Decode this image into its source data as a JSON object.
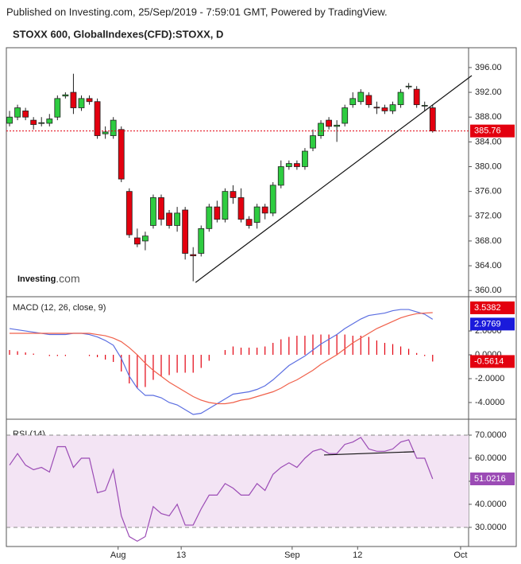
{
  "header": {
    "published": "Published on Investing.com, 25/Sep/2019 - 7:59:01 GMT, Powered by TradingView.",
    "logo": "Investing",
    "logo_suffix": ".com"
  },
  "chart_data": [
    {
      "type": "candlestick",
      "title": "STOXX 600, GlobalIndexes(CFD):STOXX, D",
      "up_color": "#2ecc40",
      "down_color": "#e3000f",
      "xlim": [
        -0.4,
        57.5
      ],
      "ylim": [
        359,
        399.2
      ],
      "yticks": [
        {
          "value": 396,
          "label": "396.00"
        },
        {
          "value": 392,
          "label": "392.00"
        },
        {
          "value": 388,
          "label": "388.00"
        },
        {
          "value": 384,
          "label": "384.00"
        },
        {
          "value": 380,
          "label": "380.00"
        },
        {
          "value": 376,
          "label": "376.00"
        },
        {
          "value": 372,
          "label": "372.00"
        },
        {
          "value": 368,
          "label": "368.00"
        },
        {
          "value": 364,
          "label": "364.00"
        },
        {
          "value": 360,
          "label": "360.00"
        }
      ],
      "open": [
        387,
        388,
        389,
        387.5,
        387,
        387,
        388,
        391.4,
        392,
        389.5,
        391,
        390.5,
        385.3,
        385,
        386,
        376,
        368.5,
        368,
        370.5,
        375,
        372.5,
        370.5,
        373,
        365.8,
        366,
        370,
        373.5,
        371.5,
        376,
        375,
        371.5,
        371,
        373.5,
        372.5,
        377,
        380,
        380.5,
        380,
        383,
        385,
        387.5,
        386.5,
        387,
        390,
        390.5,
        391.5,
        389.6,
        389.5,
        389,
        390,
        392.9,
        392.5,
        389.8,
        389.5
      ],
      "high": [
        389,
        390,
        389.5,
        388,
        388,
        388.5,
        391.5,
        392,
        395,
        391.5,
        391.5,
        391,
        386.5,
        388,
        386.5,
        376.5,
        370,
        369.5,
        375.5,
        375.5,
        373,
        373.5,
        373.5,
        367,
        370.5,
        374,
        374.5,
        376.5,
        377,
        376.5,
        372,
        374,
        374,
        377.5,
        381,
        381,
        381,
        383,
        386,
        387.5,
        388,
        387.5,
        390,
        392,
        392.5,
        392,
        390.5,
        390,
        390.5,
        392.5,
        393.5,
        393,
        390.5,
        390
      ],
      "low": [
        386.5,
        387.5,
        387.5,
        386,
        386.5,
        386.5,
        387.5,
        391,
        388.5,
        389,
        390,
        384.5,
        384.5,
        384.5,
        377.5,
        368.5,
        367,
        366.5,
        370,
        370.5,
        370,
        369.5,
        365,
        361.5,
        365.5,
        369.5,
        371,
        371,
        374,
        371,
        370,
        370,
        371.5,
        372,
        376.5,
        379.5,
        379.5,
        379.5,
        382.5,
        384.5,
        386,
        384,
        386.5,
        389.5,
        390,
        389.5,
        388.5,
        388.5,
        388.5,
        389.5,
        392.5,
        389.5,
        389,
        385.5
      ],
      "close": [
        388,
        389.5,
        388,
        386.8,
        387.1,
        387.7,
        391,
        391.6,
        389.5,
        391,
        390.5,
        385,
        385.6,
        387.5,
        378,
        369,
        367.5,
        368.8,
        375,
        371.5,
        370.5,
        372.5,
        366,
        365.6,
        370,
        373.5,
        371.5,
        376,
        375,
        371.5,
        370.5,
        373.5,
        372.5,
        377,
        380,
        380.5,
        380,
        382.5,
        385,
        387,
        386.5,
        386.7,
        389.5,
        391,
        392,
        390,
        389.5,
        389,
        390,
        392,
        393,
        390,
        389.9,
        385.76
      ],
      "trendline": {
        "x": [
          23.3,
          57.9
        ],
        "y": [
          361.3,
          394.7
        ]
      }
    },
    {
      "type": "macd",
      "title": "MACD (12, 26, close, 9)",
      "xlim": [
        -0.4,
        57.5
      ],
      "ylim": [
        -5.4,
        4.87
      ],
      "yticks": [
        {
          "value": 2,
          "label": "2.0000"
        },
        {
          "value": 0,
          "label": "0.0000"
        },
        {
          "value": -2,
          "label": "-2.0000"
        },
        {
          "value": -4,
          "label": "-4.0000"
        }
      ],
      "series": [
        {
          "color": "#5b6ee1",
          "values": [
            2.2,
            2.1,
            2.0,
            1.9,
            1.8,
            1.7,
            1.7,
            1.7,
            1.8,
            1.8,
            1.7,
            1.5,
            1.2,
            0.8,
            -0.3,
            -1.8,
            -2.8,
            -3.4,
            -3.4,
            -3.6,
            -4.0,
            -4.2,
            -4.6,
            -5.0,
            -4.9,
            -4.5,
            -4.1,
            -3.7,
            -3.3,
            -3.2,
            -3.1,
            -2.9,
            -2.6,
            -2.1,
            -1.5,
            -0.9,
            -0.5,
            -0.1,
            0.4,
            0.9,
            1.3,
            1.7,
            2.2,
            2.6,
            3.0,
            3.3,
            3.4,
            3.5,
            3.7,
            3.8,
            3.8,
            3.6,
            3.4,
            2.9769
          ],
          "label_bg": "#1a1adb"
        },
        {
          "color": "#f0604a",
          "values": [
            1.8,
            1.8,
            1.8,
            1.8,
            1.8,
            1.8,
            1.8,
            1.8,
            1.8,
            1.8,
            1.8,
            1.7,
            1.6,
            1.4,
            1.1,
            0.6,
            0.0,
            -0.7,
            -1.3,
            -1.8,
            -2.3,
            -2.7,
            -3.1,
            -3.5,
            -3.8,
            -4.0,
            -4.1,
            -4.1,
            -4.0,
            -3.8,
            -3.7,
            -3.5,
            -3.3,
            -3.1,
            -2.8,
            -2.4,
            -2.1,
            -1.7,
            -1.3,
            -0.8,
            -0.4,
            0.0,
            0.5,
            1.0,
            1.4,
            1.8,
            2.2,
            2.5,
            2.8,
            3.1,
            3.3,
            3.45,
            3.5,
            3.5382
          ],
          "label_bg": "#e3000f"
        }
      ],
      "histogram": {
        "color": "#e3000f",
        "values": [
          0.4,
          0.3,
          0.2,
          0.1,
          0,
          -0.1,
          -0.1,
          -0.1,
          0,
          0,
          -0.1,
          -0.2,
          -0.4,
          -0.6,
          -1.4,
          -2.4,
          -2.8,
          -2.7,
          -2.1,
          -1.8,
          -1.7,
          -1.5,
          -1.5,
          -1.5,
          -1.1,
          -0.5,
          0,
          0.4,
          0.7,
          0.6,
          0.6,
          0.6,
          0.7,
          1.0,
          1.3,
          1.5,
          1.6,
          1.6,
          1.7,
          1.7,
          1.7,
          1.7,
          1.7,
          1.6,
          1.6,
          1.5,
          1.2,
          1.0,
          0.9,
          0.7,
          0.5,
          0.15,
          -0.1,
          -0.5614
        ]
      }
    },
    {
      "type": "rsi",
      "title": "RSI (14)",
      "xlim": [
        -0.4,
        57.5
      ],
      "ylim": [
        21.7,
        76.9
      ],
      "color": "#9b4bb5",
      "band": [
        30,
        70
      ],
      "yticks": [
        {
          "value": 70,
          "label": "70.0000"
        },
        {
          "value": 60,
          "label": "60.0000"
        },
        {
          "value": 50,
          "label": "50.0000"
        },
        {
          "value": 40,
          "label": "40.0000"
        },
        {
          "value": 30,
          "label": "30.0000"
        }
      ],
      "values": [
        57,
        62,
        57,
        55,
        56,
        54,
        65,
        65,
        56,
        60,
        60,
        45,
        46,
        55,
        35,
        26,
        24,
        26,
        39,
        36,
        35,
        40,
        31,
        31,
        38,
        44,
        44,
        49,
        47,
        44,
        44,
        49,
        46,
        53,
        56,
        58,
        56,
        60,
        63,
        64,
        62,
        62,
        66,
        67,
        69,
        64,
        63,
        63,
        64,
        67,
        68,
        60,
        60,
        51.0216
      ],
      "trendline": {
        "x": [
          39.4,
          50.7
        ],
        "y": [
          61.4,
          62.8
        ]
      },
      "xticks": [
        {
          "value": 13.6,
          "label": "Aug"
        },
        {
          "value": 21.5,
          "label": "13"
        },
        {
          "value": 35.4,
          "label": "Sep"
        },
        {
          "value": 43.6,
          "label": "12"
        },
        {
          "value": 56.5,
          "label": "Oct"
        }
      ]
    }
  ]
}
